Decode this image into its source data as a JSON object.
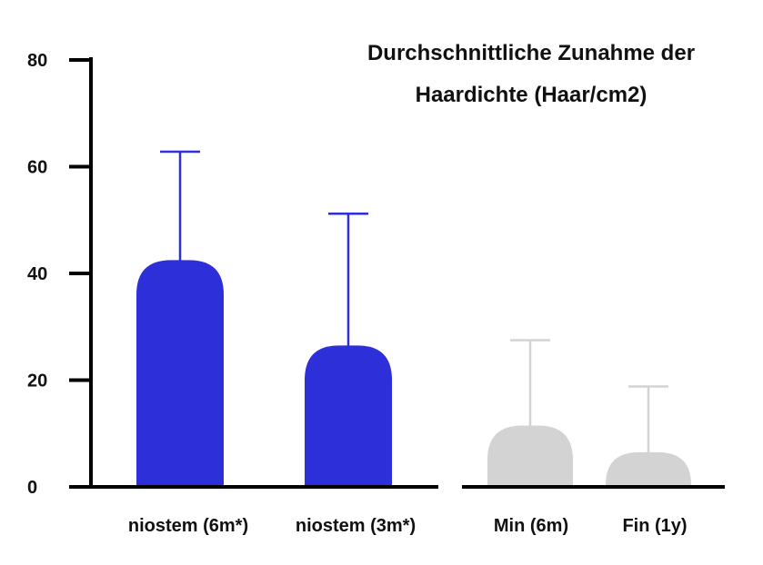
{
  "chart_data": {
    "type": "bar",
    "title_lines": [
      "Durchschnittliche Zunahme der",
      "Haardichte (Haar/cm2)"
    ],
    "categories": [
      "niostem (6m*)",
      "niostem (3m*)",
      "Min (6m)",
      "Fin (1y)"
    ],
    "values": [
      42.5,
      26.5,
      11.5,
      6.5
    ],
    "error_upper": [
      62.8,
      51.2,
      27.5,
      18.8
    ],
    "bar_colors": [
      "#2d2fd8",
      "#2d2fd8",
      "#d3d3d3",
      "#d3d3d3"
    ],
    "yticks": [
      0,
      20,
      40,
      60,
      80
    ],
    "ylim": [
      0,
      80
    ],
    "grid": false,
    "legend": "none"
  }
}
